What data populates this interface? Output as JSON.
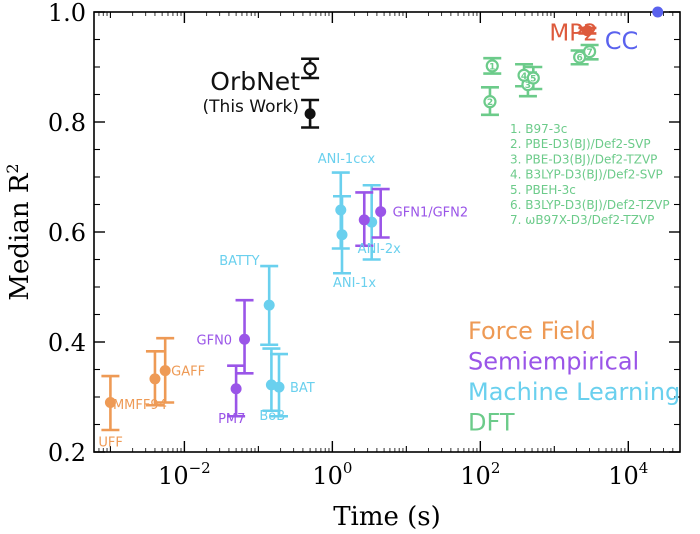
{
  "chart_data": {
    "type": "scatter",
    "title": "",
    "xlabel": "Time (s)",
    "ylabel": "Median R",
    "ylabel_sup": "2",
    "x_scale": "log",
    "xlim": [
      0.0006,
      50000
    ],
    "ylim": [
      0.2,
      1.0
    ],
    "grid": false,
    "y_ticks": [
      {
        "value": 0.2,
        "label": "0.2"
      },
      {
        "value": 0.4,
        "label": "0.4"
      },
      {
        "value": 0.6,
        "label": "0.6"
      },
      {
        "value": 0.8,
        "label": "0.8"
      },
      {
        "value": 1.0,
        "label": "1.0"
      }
    ],
    "x_ticks": [
      {
        "value": 0.01,
        "base": "10",
        "exp": "−2"
      },
      {
        "value": 1,
        "base": "10",
        "exp": "0"
      },
      {
        "value": 100,
        "base": "10",
        "exp": "2"
      },
      {
        "value": 10000,
        "base": "10",
        "exp": "4"
      }
    ],
    "colors": {
      "Force Field": "#ee9a55",
      "Semiempirical": "#9a55e8",
      "Machine Learning": "#6ad0ee",
      "DFT": "#6ccb8a",
      "MP2": "#dd5a3c",
      "CC": "#5a62ee",
      "OrbNet": "#111111"
    },
    "legend": {
      "placement": "bottom-right",
      "entries": [
        {
          "name": "Force Field",
          "color": "#ee9a55"
        },
        {
          "name": "Semiempirical",
          "color": "#9a55e8"
        },
        {
          "name": "Machine Learning",
          "color": "#6ad0ee"
        },
        {
          "name": "DFT",
          "color": "#6ccb8a"
        }
      ]
    },
    "points": [
      {
        "label": "UFF",
        "category": "Force Field",
        "x": 0.001,
        "y": 0.29,
        "lo": 0.24,
        "hi": 0.338
      },
      {
        "label": "MMFF94",
        "category": "Force Field",
        "x": 0.004,
        "y": 0.333,
        "lo": 0.285,
        "hi": 0.383
      },
      {
        "label": "GAFF",
        "category": "Force Field",
        "x": 0.0055,
        "y": 0.348,
        "lo": 0.29,
        "hi": 0.407
      },
      {
        "label": "PM7",
        "category": "Semiempirical",
        "x": 0.05,
        "y": 0.315,
        "lo": 0.265,
        "hi": 0.357
      },
      {
        "label": "GFN0",
        "category": "Semiempirical",
        "x": 0.065,
        "y": 0.405,
        "lo": 0.343,
        "hi": 0.476
      },
      {
        "label": "BATTY",
        "category": "Machine Learning",
        "x": 0.14,
        "y": 0.467,
        "lo": 0.395,
        "hi": 0.538
      },
      {
        "label": "BoB",
        "category": "Machine Learning",
        "x": 0.15,
        "y": 0.322,
        "lo": 0.275,
        "hi": 0.388
      },
      {
        "label": "BAT",
        "category": "Machine Learning",
        "x": 0.19,
        "y": 0.318,
        "lo": 0.265,
        "hi": 0.378
      },
      {
        "label": "ANI-1ccx",
        "category": "Machine Learning",
        "x": 1.3,
        "y": 0.64,
        "lo": 0.57,
        "hi": 0.708
      },
      {
        "label": "ANI-1x",
        "category": "Machine Learning",
        "x": 1.35,
        "y": 0.595,
        "lo": 0.525,
        "hi": 0.665
      },
      {
        "label": "ANI-2x",
        "category": "Machine Learning",
        "x": 3.4,
        "y": 0.618,
        "lo": 0.55,
        "hi": 0.685
      },
      {
        "label": "",
        "category": "Semiempirical",
        "x": 2.7,
        "y": 0.622,
        "lo": 0.575,
        "hi": 0.672
      },
      {
        "label": "GFN1/GFN2",
        "category": "Semiempirical",
        "x": 4.5,
        "y": 0.637,
        "lo": 0.59,
        "hi": 0.678
      },
      {
        "label": "OrbNet",
        "category": "OrbNet",
        "x": 0.5,
        "y": 0.815,
        "lo": 0.79,
        "hi": 0.84,
        "filled": true
      },
      {
        "label": "",
        "category": "OrbNet",
        "x": 0.5,
        "y": 0.897,
        "lo": 0.88,
        "hi": 0.915,
        "filled": false
      },
      {
        "label": "1",
        "category": "DFT",
        "x": 145,
        "y": 0.902,
        "lo": 0.888,
        "hi": 0.916,
        "filled": false
      },
      {
        "label": "2",
        "category": "DFT",
        "x": 135,
        "y": 0.837,
        "lo": 0.813,
        "hi": 0.863,
        "filled": false
      },
      {
        "label": "3",
        "category": "DFT",
        "x": 440,
        "y": 0.868,
        "lo": 0.847,
        "hi": 0.89,
        "filled": false
      },
      {
        "label": "4",
        "category": "DFT",
        "x": 390,
        "y": 0.885,
        "lo": 0.865,
        "hi": 0.905,
        "filled": false
      },
      {
        "label": "5",
        "category": "DFT",
        "x": 520,
        "y": 0.88,
        "lo": 0.86,
        "hi": 0.9,
        "filled": false
      },
      {
        "label": "6",
        "category": "DFT",
        "x": 2200,
        "y": 0.918,
        "lo": 0.905,
        "hi": 0.93,
        "filled": false
      },
      {
        "label": "7",
        "category": "DFT",
        "x": 3000,
        "y": 0.928,
        "lo": 0.914,
        "hi": 0.94,
        "filled": false
      },
      {
        "label": "MP2",
        "category": "MP2",
        "x": 2800,
        "y": 0.966,
        "lo": 0.961,
        "hi": 0.971,
        "filled": true
      },
      {
        "label": "CC",
        "category": "CC",
        "x": 25000,
        "y": 1.0,
        "lo": 1.0,
        "hi": 1.0,
        "filled": true
      }
    ],
    "annotations": {
      "orbnet_title": "OrbNet",
      "orbnet_sub": "(This Work)",
      "dft_methods": [
        "1. B97-3c",
        "2. PBE-D3(BJ)/Def2-SVP",
        "3. PBE-D3(BJ)/Def2-TZVP",
        "4. B3LYP-D3(BJ)/Def2-SVP",
        "5. PBEH-3c",
        "6. B3LYP-D3(BJ)/Def2-TZVP",
        "7. ωB97X-D3/Def2-TZVP"
      ]
    }
  }
}
